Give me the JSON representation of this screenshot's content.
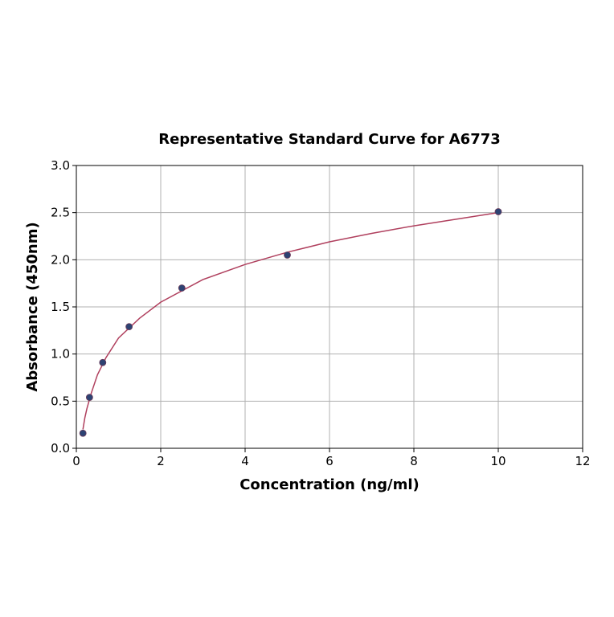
{
  "chart_data": {
    "type": "scatter",
    "title": "Representative Standard Curve for A6773",
    "x_label": "Concentration (ng/ml)",
    "y_label": "Absorbance (450nm)",
    "xlim": [
      0,
      12
    ],
    "xticks": [
      0,
      2,
      4,
      6,
      8,
      10,
      12
    ],
    "ylim": [
      0,
      3
    ],
    "yticks": [
      {
        "value": 0,
        "label": "0.0"
      },
      0.5,
      {
        "value": 1,
        "label": "1.0"
      },
      1.5,
      {
        "value": 2,
        "label": "2.0"
      },
      2.5,
      {
        "value": 3,
        "label": "3.0"
      }
    ],
    "grid": true,
    "series": [
      {
        "style": "markers",
        "color": "#2d4373",
        "x": [
          0.156,
          0.312,
          0.625,
          1.25,
          2.5,
          5,
          10
        ],
        "values": [
          0.16,
          0.54,
          0.91,
          1.29,
          1.7,
          2.05,
          2.51
        ]
      },
      {
        "style": "line",
        "color": "#b0405e",
        "x": [
          0.156,
          0.2,
          0.25,
          0.35,
          0.5,
          0.7,
          1,
          1.5,
          2,
          3,
          4,
          5,
          6,
          7,
          8,
          9,
          10
        ],
        "values": [
          0.2,
          0.32,
          0.42,
          0.58,
          0.78,
          0.96,
          1.17,
          1.38,
          1.55,
          1.79,
          1.95,
          2.08,
          2.19,
          2.28,
          2.36,
          2.43,
          2.5
        ]
      }
    ]
  }
}
